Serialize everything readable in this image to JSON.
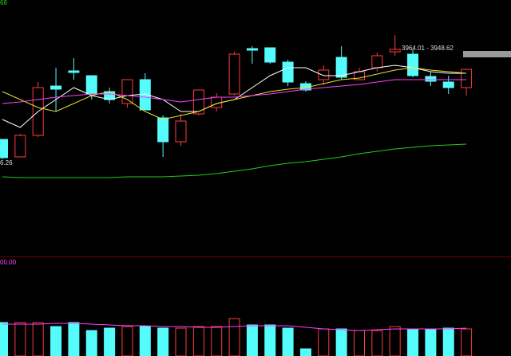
{
  "chart_data": [
    {
      "type": "candlestick",
      "annotations": [
        "68",
        "6.26",
        "3964.01 - 3948.62"
      ],
      "up_color": "#ff3b3b",
      "down_color": "#54fcfc",
      "ylim": [
        3700,
        4020
      ],
      "open": [
        3845,
        3823,
        3850,
        3912,
        3931,
        3925,
        3905,
        3890,
        3920,
        3872,
        3842,
        3877,
        3885,
        3902,
        3959,
        3960,
        3942,
        3915,
        3920,
        3948,
        3920,
        3935,
        3955,
        3952,
        3924,
        3917,
        3910
      ],
      "close": [
        3822,
        3850,
        3910,
        3908,
        3929,
        3902,
        3895,
        3920,
        3882,
        3842,
        3868,
        3907,
        3898,
        3952,
        3957,
        3942,
        3917,
        3907,
        3932,
        3923,
        3930,
        3950,
        3958,
        3925,
        3918,
        3910,
        3933
      ],
      "high": [
        3845,
        3852,
        3917,
        3935,
        3947,
        3925,
        3910,
        3920,
        3928,
        3875,
        3877,
        3907,
        3903,
        3955,
        3962,
        3960,
        3945,
        3918,
        3938,
        3962,
        3935,
        3954,
        3976,
        3958,
        3930,
        3925,
        3933
      ],
      "low": [
        3820,
        3823,
        3848,
        3880,
        3920,
        3895,
        3890,
        3885,
        3882,
        3823,
        3837,
        3875,
        3880,
        3900,
        3940,
        3940,
        3912,
        3905,
        3913,
        3920,
        3920,
        3930,
        3950,
        3923,
        3912,
        3902,
        3900
      ],
      "lines": [
        {
          "color": "#ffffff",
          "values": [
            3870,
            3860,
            3880,
            3895,
            3910,
            3900,
            3895,
            3900,
            3902,
            3895,
            3880,
            3880,
            3890,
            3895,
            3910,
            3925,
            3935,
            3935,
            3925,
            3925,
            3930,
            3935,
            3938,
            3935,
            3930,
            3928,
            3928
          ]
        },
        {
          "color": "#e8e030",
          "values": [
            3905,
            3895,
            3885,
            3880,
            3890,
            3900,
            3905,
            3895,
            3880,
            3870,
            3875,
            3880,
            3890,
            3895,
            3900,
            3905,
            3908,
            3910,
            3915,
            3920,
            3922,
            3927,
            3932,
            3935,
            3932,
            3930,
            3928
          ]
        },
        {
          "color": "#ff40ff",
          "values": [
            3890,
            3892,
            3895,
            3898,
            3900,
            3902,
            3902,
            3900,
            3898,
            3895,
            3892,
            3895,
            3898,
            3898,
            3900,
            3902,
            3905,
            3908,
            3910,
            3912,
            3914,
            3917,
            3920,
            3920,
            3920,
            3920,
            3920
          ]
        },
        {
          "color": "#22cc22",
          "values": [
            3798,
            3797,
            3797,
            3797,
            3797,
            3797,
            3797,
            3798,
            3798,
            3798,
            3799,
            3800,
            3802,
            3805,
            3808,
            3812,
            3815,
            3817,
            3820,
            3823,
            3827,
            3830,
            3833,
            3835,
            3837,
            3838,
            3839
          ]
        }
      ]
    },
    {
      "type": "volume",
      "annotations": [
        "00.00"
      ],
      "ylim": [
        0,
        117
      ],
      "values": [
        42,
        42,
        42,
        37,
        42,
        32,
        35,
        37,
        37,
        35,
        35,
        37,
        37,
        47,
        39,
        39,
        35,
        9,
        34,
        34,
        32,
        32,
        37,
        34,
        34,
        35,
        34
      ],
      "lines": [
        {
          "color": "#ff40ff",
          "values": [
            40,
            40,
            40,
            41,
            41,
            40,
            39,
            38,
            38,
            37,
            37,
            36,
            36,
            37,
            38,
            38,
            38,
            36,
            34,
            33,
            32,
            33,
            34,
            34,
            34,
            34,
            35
          ]
        }
      ]
    }
  ]
}
